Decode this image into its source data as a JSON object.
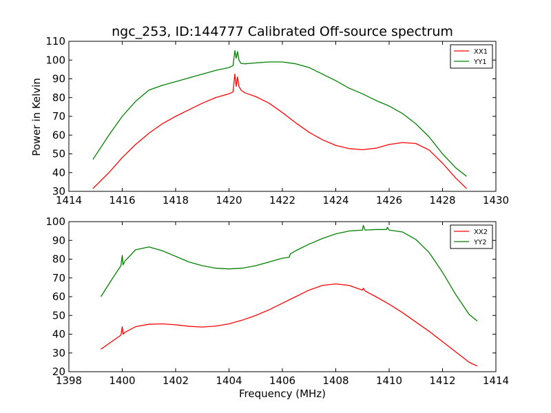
{
  "title": "ngc_253, ID:144777 Calibrated Off-source spectrum",
  "xlabel": "Frequency (MHz)",
  "ylabel": "Power in Kelvin",
  "chart_data": [
    {
      "type": "line",
      "title": "ngc_253, ID:144777 Calibrated Off-source spectrum",
      "xlabel": "",
      "ylabel": "Power in Kelvin",
      "xlim": [
        1414,
        1430
      ],
      "ylim": [
        30,
        110
      ],
      "xticks": [
        1414,
        1416,
        1418,
        1420,
        1422,
        1424,
        1426,
        1428,
        1430
      ],
      "yticks": [
        30,
        40,
        50,
        60,
        70,
        80,
        90,
        100,
        110
      ],
      "legend": "top-right",
      "series": [
        {
          "name": "XX1",
          "color": "#ff0000",
          "x": [
            1414.9,
            1415.5,
            1416.0,
            1416.5,
            1417.0,
            1417.5,
            1418.0,
            1418.5,
            1419.0,
            1419.5,
            1420.0,
            1420.15,
            1420.22,
            1420.27,
            1420.32,
            1420.37,
            1420.45,
            1420.6,
            1421.0,
            1421.5,
            1422.0,
            1422.5,
            1423.0,
            1423.5,
            1424.0,
            1424.5,
            1425.0,
            1425.5,
            1426.0,
            1426.5,
            1427.0,
            1427.5,
            1428.0,
            1428.5,
            1428.9
          ],
          "y": [
            31.5,
            40,
            48,
            55,
            61,
            66,
            70,
            73.5,
            77,
            80,
            82,
            83,
            92.5,
            86,
            91,
            86,
            84,
            82.5,
            80.5,
            77,
            72,
            66.5,
            61.5,
            57.5,
            54.5,
            52.8,
            52.2,
            53,
            55,
            56,
            55.5,
            52,
            45,
            37,
            31.5
          ]
        },
        {
          "name": "YY1",
          "color": "#008000",
          "x": [
            1414.9,
            1415.5,
            1416.0,
            1416.5,
            1417.0,
            1417.5,
            1418.0,
            1418.5,
            1419.0,
            1419.5,
            1420.0,
            1420.15,
            1420.22,
            1420.27,
            1420.32,
            1420.37,
            1420.45,
            1420.6,
            1421.0,
            1421.5,
            1422.0,
            1422.5,
            1423.0,
            1423.5,
            1424.0,
            1424.5,
            1425.0,
            1425.5,
            1426.0,
            1426.5,
            1427.0,
            1427.5,
            1428.0,
            1428.5,
            1428.9
          ],
          "y": [
            47,
            60,
            70,
            78,
            84,
            86.5,
            88.5,
            90.5,
            92.5,
            94.5,
            96,
            97,
            105,
            101,
            104.5,
            100,
            98.2,
            98,
            98.5,
            99,
            99,
            98,
            96,
            92.5,
            89,
            85,
            82,
            78.5,
            75.5,
            71.5,
            66,
            59,
            50,
            42.5,
            38
          ]
        }
      ]
    },
    {
      "type": "line",
      "title": "",
      "xlabel": "Frequency (MHz)",
      "ylabel": "",
      "xlim": [
        1398,
        1414
      ],
      "ylim": [
        20,
        100
      ],
      "xticks": [
        1398,
        1400,
        1402,
        1404,
        1406,
        1408,
        1410,
        1412,
        1414
      ],
      "yticks": [
        20,
        30,
        40,
        50,
        60,
        70,
        80,
        90,
        100
      ],
      "legend": "top-right",
      "series": [
        {
          "name": "XX2",
          "color": "#ff0000",
          "x": [
            1399.2,
            1399.6,
            1399.95,
            1400.0,
            1400.03,
            1400.1,
            1400.5,
            1401.0,
            1401.5,
            1402.0,
            1402.5,
            1403.0,
            1403.5,
            1404.0,
            1404.5,
            1405.0,
            1405.5,
            1406.0,
            1406.5,
            1407.0,
            1407.5,
            1408.0,
            1408.5,
            1409.0,
            1409.03,
            1409.1,
            1409.5,
            1410.0,
            1410.5,
            1411.0,
            1411.5,
            1412.0,
            1412.5,
            1413.0,
            1413.3
          ],
          "y": [
            32,
            36,
            39.5,
            44,
            40,
            41,
            44,
            45.3,
            45.5,
            45,
            44.2,
            43.8,
            44.3,
            45.5,
            47.5,
            50,
            53,
            56.5,
            60,
            63.5,
            66,
            66.8,
            66,
            63.5,
            64.5,
            63,
            60,
            56,
            51.5,
            46.5,
            41.5,
            36,
            30.5,
            25,
            23
          ]
        },
        {
          "name": "YY2",
          "color": "#008000",
          "x": [
            1399.2,
            1399.6,
            1399.95,
            1400.0,
            1400.03,
            1400.1,
            1400.5,
            1401.0,
            1401.5,
            1402.0,
            1402.5,
            1403.0,
            1403.5,
            1404.0,
            1404.5,
            1405.0,
            1405.5,
            1406.0,
            1406.25,
            1406.3,
            1406.5,
            1407.0,
            1407.5,
            1408.0,
            1408.5,
            1409.0,
            1409.03,
            1409.1,
            1409.5,
            1409.9,
            1409.93,
            1410.0,
            1410.5,
            1411.0,
            1411.5,
            1412.0,
            1412.5,
            1413.0,
            1413.3
          ],
          "y": [
            60,
            69,
            76.5,
            82,
            77,
            79,
            85,
            86.5,
            84.5,
            81.5,
            78.5,
            76.5,
            75.2,
            74.8,
            75.2,
            76.5,
            78.5,
            80.5,
            81,
            82.8,
            84.5,
            88,
            91,
            93.5,
            95,
            95.5,
            98,
            95.5,
            95.8,
            95.8,
            97,
            95.5,
            94.5,
            90.5,
            83.5,
            73,
            61,
            50.5,
            47
          ]
        }
      ]
    }
  ]
}
